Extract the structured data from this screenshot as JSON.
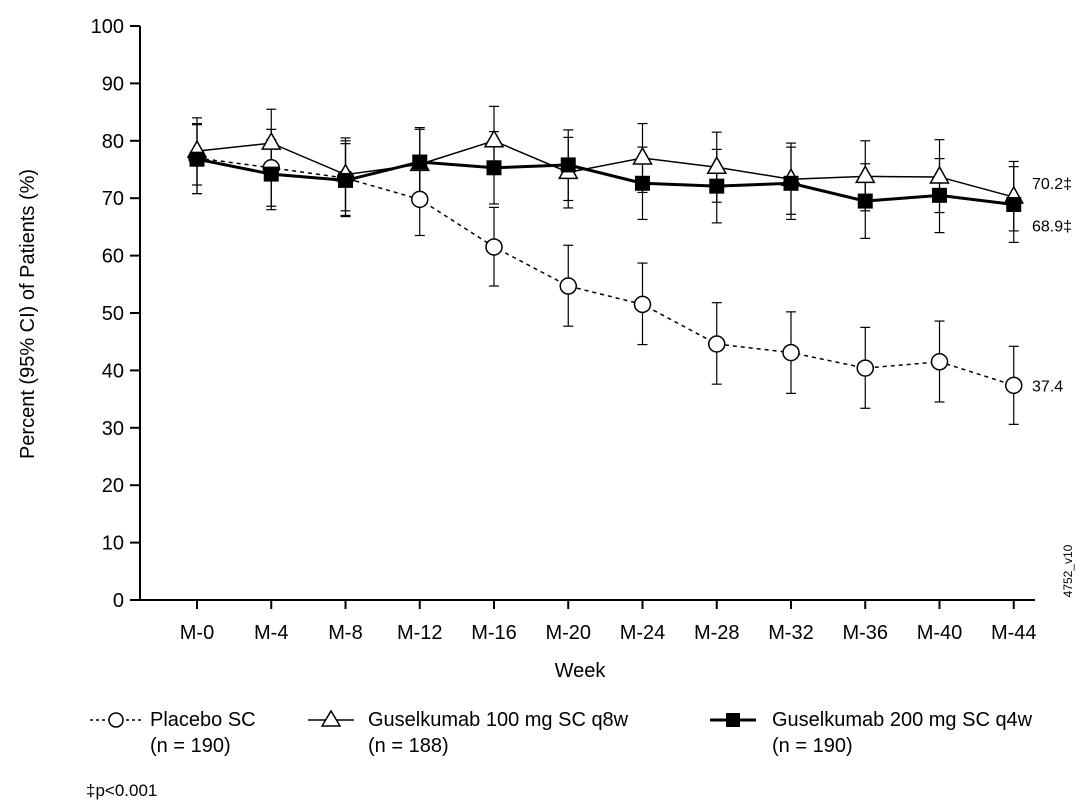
{
  "chart_data": {
    "type": "line",
    "ylabel": "Percent (95% CI) of Patients (%)",
    "xlabel": "Week",
    "ylim": [
      0,
      100
    ],
    "yticks": [
      "0",
      "10",
      "20",
      "30",
      "40",
      "50",
      "60",
      "70",
      "80",
      "90",
      "100"
    ],
    "categories": [
      "M-0",
      "M-4",
      "M-8",
      "M-12",
      "M-16",
      "M-20",
      "M-24",
      "M-28",
      "M-32",
      "M-36",
      "M-40",
      "M-44"
    ],
    "grid": false,
    "legend_position": "bottom",
    "series": [
      {
        "name": "Placebo SC",
        "n_label": "(n = 190)",
        "marker": "open-circle",
        "line_style": "dotted",
        "values": [
          77.0,
          75.3,
          73.5,
          69.8,
          61.5,
          54.7,
          51.5,
          44.6,
          43.1,
          40.4,
          41.5,
          37.4
        ],
        "ci_low": [
          70.8,
          68.6,
          67.0,
          63.5,
          54.7,
          47.7,
          44.5,
          37.6,
          36.0,
          33.4,
          34.5,
          30.6
        ],
        "ci_high": [
          83.0,
          82.0,
          80.0,
          76.2,
          68.4,
          61.8,
          58.7,
          51.8,
          50.2,
          47.5,
          48.6,
          44.2
        ],
        "end_label": "37.4",
        "color": "#000000"
      },
      {
        "name": "Guselkumab 100 mg SC q8w",
        "n_label": "(n = 188)",
        "marker": "open-triangle",
        "line_style": "solid",
        "values": [
          78.2,
          79.6,
          74.1,
          75.9,
          80.0,
          74.5,
          77.0,
          75.4,
          73.3,
          73.8,
          73.7,
          70.2
        ],
        "ci_low": [
          72.3,
          73.8,
          67.8,
          69.9,
          74.3,
          68.3,
          71.0,
          69.3,
          67.2,
          67.8,
          67.5,
          64.3
        ],
        "ci_high": [
          84.0,
          85.5,
          80.5,
          82.0,
          86.0,
          80.6,
          83.0,
          81.5,
          79.6,
          80.0,
          80.2,
          76.4
        ],
        "end_label": "70.2‡",
        "color": "#000000"
      },
      {
        "name": "Guselkumab 200 mg SC q4w",
        "n_label": "(n = 190)",
        "marker": "filled-square",
        "line_style": "solid",
        "values": [
          76.8,
          74.2,
          73.1,
          76.3,
          75.3,
          75.8,
          72.6,
          72.1,
          72.6,
          69.5,
          70.5,
          68.9
        ],
        "ci_low": [
          70.8,
          68.0,
          66.8,
          70.0,
          69.0,
          69.6,
          66.3,
          65.7,
          66.3,
          63.0,
          64.0,
          62.3
        ],
        "ci_high": [
          82.8,
          80.2,
          79.5,
          82.3,
          81.6,
          81.9,
          78.9,
          78.5,
          78.9,
          76.0,
          76.9,
          75.5
        ],
        "end_label": "68.9‡",
        "color": "#000000"
      }
    ],
    "annotations": [
      "4752_v10"
    ]
  },
  "footnote": "‡p<0.001"
}
